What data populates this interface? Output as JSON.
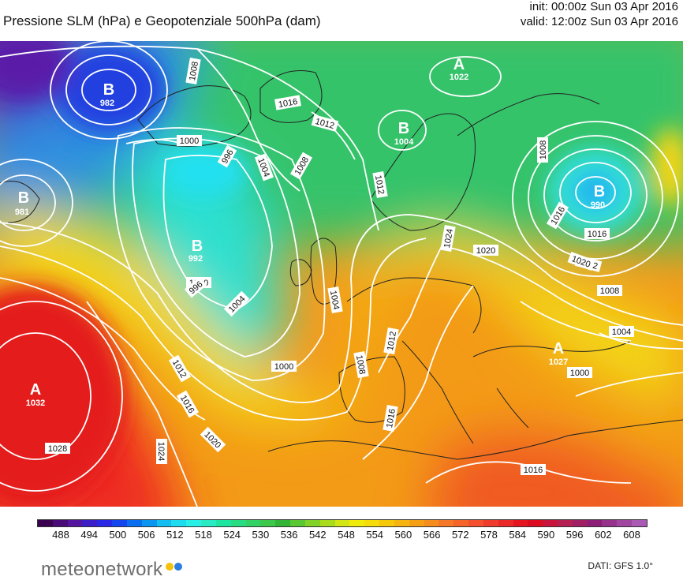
{
  "header": {
    "title": "Pressione SLM (hPa) e Geopotenziale 500hPa (dam)",
    "init": "init: 00:00z Sun 03 Apr 2016",
    "valid": "valid: 12:00z Sun 03 Apr 2016"
  },
  "map": {
    "pressure_centers": [
      {
        "kind": "B",
        "value": "982"
      },
      {
        "kind": "B",
        "value": "981"
      },
      {
        "kind": "B",
        "value": "992"
      },
      {
        "kind": "B",
        "value": "1004"
      },
      {
        "kind": "A",
        "value": "1022"
      },
      {
        "kind": "B",
        "value": "990"
      },
      {
        "kind": "A",
        "value": "1032"
      },
      {
        "kind": "A",
        "value": "1027"
      }
    ],
    "isobar_labels": [
      "1008",
      "1016",
      "1012",
      "1000",
      "996",
      "1004",
      "1008",
      "1012",
      "1000",
      "996",
      "1004",
      "1000",
      "1004",
      "1008",
      "1012",
      "1016",
      "1020",
      "1028",
      "1024",
      "1008",
      "1012",
      "1016",
      "1016",
      "1020",
      "1008",
      "1004",
      "1000",
      "1012",
      "1016",
      "1024",
      "1020",
      "1016"
    ]
  },
  "colorbar": {
    "tick_labels": [
      "488",
      "494",
      "500",
      "506",
      "512",
      "518",
      "524",
      "530",
      "536",
      "542",
      "548",
      "554",
      "560",
      "566",
      "572",
      "578",
      "584",
      "590",
      "596",
      "602",
      "608"
    ],
    "colors": [
      "#3c0050",
      "#4a0a78",
      "#5514a0",
      "#3c1ec8",
      "#2828e6",
      "#1446f0",
      "#0a6ef0",
      "#0a96f0",
      "#14bef0",
      "#1edcf0",
      "#28f0e6",
      "#28ebc3",
      "#1ee6a0",
      "#28dc82",
      "#32d264",
      "#3cc84b",
      "#32b437",
      "#5ac832",
      "#82d228",
      "#aadc1e",
      "#d2e614",
      "#f0eb0a",
      "#f5dc0a",
      "#f5c80a",
      "#f5b40f",
      "#f5a014",
      "#f58c1e",
      "#f57828",
      "#f56428",
      "#f5502d",
      "#f03c2d",
      "#eb2828",
      "#e6141e",
      "#dc0a1e",
      "#c8143c",
      "#b41e50",
      "#a01e64",
      "#8c1e78",
      "#96328c",
      "#a046a0",
      "#aa5ab4"
    ]
  },
  "footer": {
    "brand": "meteonetwork",
    "data_source": "DATI: GFS 1.0°"
  }
}
